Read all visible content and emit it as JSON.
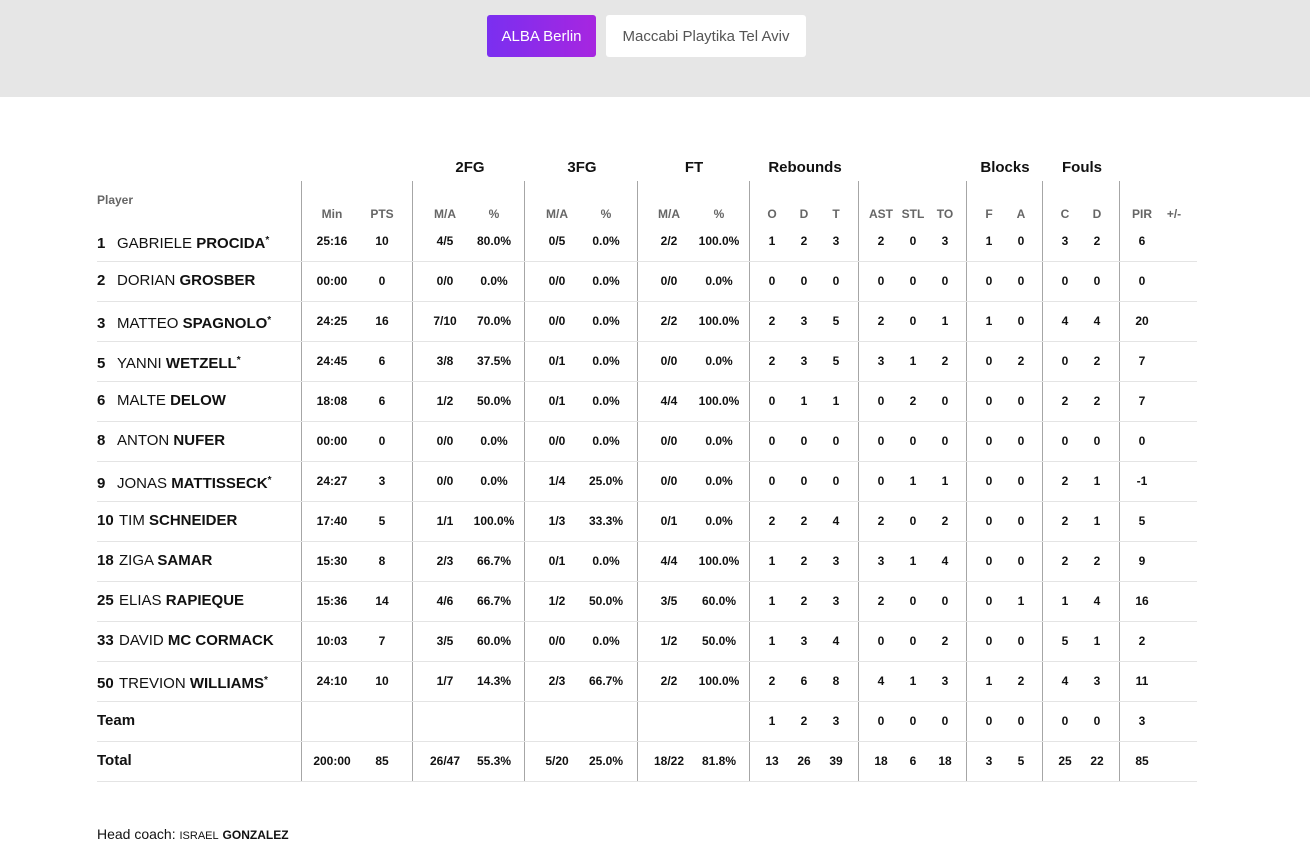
{
  "tabs": {
    "home": "ALBA Berlin",
    "away": "Maccabi Playtika Tel Aviv"
  },
  "colors": {
    "tab_active_start": "#7a2ff0",
    "tab_active_end": "#a726e0",
    "band": "#e6e6e6"
  },
  "table": {
    "player_header": "Player",
    "groups": {
      "fg2": "2FG",
      "fg3": "3FG",
      "ft": "FT",
      "reb": "Rebounds",
      "blk": "Blocks",
      "fouls": "Fouls"
    },
    "columns": [
      "Min",
      "PTS",
      "M/A",
      "%",
      "M/A",
      "%",
      "M/A",
      "%",
      "O",
      "D",
      "T",
      "AST",
      "STL",
      "TO",
      "F",
      "A",
      "C",
      "D",
      "PIR",
      "+/-"
    ],
    "players": [
      {
        "num": "1",
        "first": "GABRIELE",
        "last": "PROCIDA",
        "starter": true,
        "stats": [
          "25:16",
          "10",
          "4/5",
          "80.0%",
          "0/5",
          "0.0%",
          "2/2",
          "100.0%",
          "1",
          "2",
          "3",
          "2",
          "0",
          "3",
          "1",
          "0",
          "3",
          "2",
          "6",
          ""
        ]
      },
      {
        "num": "2",
        "first": "DORIAN",
        "last": "GROSBER",
        "starter": false,
        "stats": [
          "00:00",
          "0",
          "0/0",
          "0.0%",
          "0/0",
          "0.0%",
          "0/0",
          "0.0%",
          "0",
          "0",
          "0",
          "0",
          "0",
          "0",
          "0",
          "0",
          "0",
          "0",
          "0",
          ""
        ]
      },
      {
        "num": "3",
        "first": "MATTEO",
        "last": "SPAGNOLO",
        "starter": true,
        "stats": [
          "24:25",
          "16",
          "7/10",
          "70.0%",
          "0/0",
          "0.0%",
          "2/2",
          "100.0%",
          "2",
          "3",
          "5",
          "2",
          "0",
          "1",
          "1",
          "0",
          "4",
          "4",
          "20",
          ""
        ]
      },
      {
        "num": "5",
        "first": "YANNI",
        "last": "WETZELL",
        "starter": true,
        "stats": [
          "24:45",
          "6",
          "3/8",
          "37.5%",
          "0/1",
          "0.0%",
          "0/0",
          "0.0%",
          "2",
          "3",
          "5",
          "3",
          "1",
          "2",
          "0",
          "2",
          "0",
          "2",
          "7",
          ""
        ]
      },
      {
        "num": "6",
        "first": "MALTE",
        "last": "DELOW",
        "starter": false,
        "stats": [
          "18:08",
          "6",
          "1/2",
          "50.0%",
          "0/1",
          "0.0%",
          "4/4",
          "100.0%",
          "0",
          "1",
          "1",
          "0",
          "2",
          "0",
          "0",
          "0",
          "2",
          "2",
          "7",
          ""
        ]
      },
      {
        "num": "8",
        "first": "ANTON",
        "last": "NUFER",
        "starter": false,
        "stats": [
          "00:00",
          "0",
          "0/0",
          "0.0%",
          "0/0",
          "0.0%",
          "0/0",
          "0.0%",
          "0",
          "0",
          "0",
          "0",
          "0",
          "0",
          "0",
          "0",
          "0",
          "0",
          "0",
          ""
        ]
      },
      {
        "num": "9",
        "first": "JONAS",
        "last": "MATTISSECK",
        "starter": true,
        "stats": [
          "24:27",
          "3",
          "0/0",
          "0.0%",
          "1/4",
          "25.0%",
          "0/0",
          "0.0%",
          "0",
          "0",
          "0",
          "0",
          "1",
          "1",
          "0",
          "0",
          "2",
          "1",
          "-1",
          ""
        ]
      },
      {
        "num": "10",
        "first": "TIM",
        "last": "SCHNEIDER",
        "starter": false,
        "stats": [
          "17:40",
          "5",
          "1/1",
          "100.0%",
          "1/3",
          "33.3%",
          "0/1",
          "0.0%",
          "2",
          "2",
          "4",
          "2",
          "0",
          "2",
          "0",
          "0",
          "2",
          "1",
          "5",
          ""
        ]
      },
      {
        "num": "18",
        "first": "ZIGA",
        "last": "SAMAR",
        "starter": false,
        "stats": [
          "15:30",
          "8",
          "2/3",
          "66.7%",
          "0/1",
          "0.0%",
          "4/4",
          "100.0%",
          "1",
          "2",
          "3",
          "3",
          "1",
          "4",
          "0",
          "0",
          "2",
          "2",
          "9",
          ""
        ]
      },
      {
        "num": "25",
        "first": "ELIAS",
        "last": "RAPIEQUE",
        "starter": false,
        "stats": [
          "15:36",
          "14",
          "4/6",
          "66.7%",
          "1/2",
          "50.0%",
          "3/5",
          "60.0%",
          "1",
          "2",
          "3",
          "2",
          "0",
          "0",
          "0",
          "1",
          "1",
          "4",
          "16",
          ""
        ]
      },
      {
        "num": "33",
        "first": "DAVID",
        "last": "MC CORMACK",
        "starter": false,
        "stats": [
          "10:03",
          "7",
          "3/5",
          "60.0%",
          "0/0",
          "0.0%",
          "1/2",
          "50.0%",
          "1",
          "3",
          "4",
          "0",
          "0",
          "2",
          "0",
          "0",
          "5",
          "1",
          "2",
          ""
        ]
      },
      {
        "num": "50",
        "first": "TREVION",
        "last": "WILLIAMS",
        "starter": true,
        "stats": [
          "24:10",
          "10",
          "1/7",
          "14.3%",
          "2/3",
          "66.7%",
          "2/2",
          "100.0%",
          "2",
          "6",
          "8",
          "4",
          "1",
          "3",
          "1",
          "2",
          "4",
          "3",
          "11",
          ""
        ]
      }
    ],
    "team": {
      "label": "Team",
      "stats": [
        "",
        "",
        "",
        "",
        "",
        "",
        "",
        "",
        "1",
        "2",
        "3",
        "0",
        "0",
        "0",
        "0",
        "0",
        "0",
        "0",
        "3",
        ""
      ]
    },
    "total": {
      "label": "Total",
      "stats": [
        "200:00",
        "85",
        "26/47",
        "55.3%",
        "5/20",
        "25.0%",
        "18/22",
        "81.8%",
        "13",
        "26",
        "39",
        "18",
        "6",
        "18",
        "3",
        "5",
        "25",
        "22",
        "85",
        ""
      ]
    }
  },
  "coach": {
    "label": "Head coach:",
    "first": "ISRAEL",
    "last": "GONZALEZ"
  }
}
